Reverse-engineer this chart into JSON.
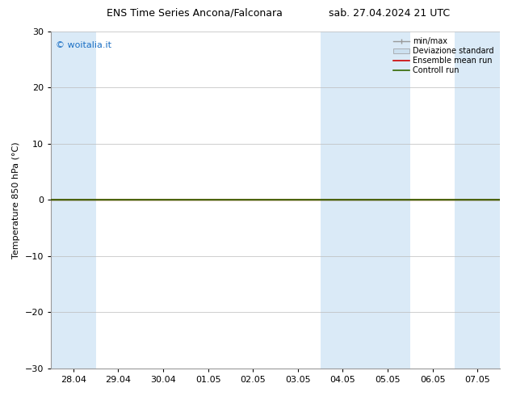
{
  "title_left": "ENS Time Series Ancona/Falconara",
  "title_right": "sab. 27.04.2024 21 UTC",
  "ylabel": "Temperature 850 hPa (°C)",
  "watermark": "© woitalia.it",
  "watermark_color": "#1a6fc4",
  "ylim": [
    -30,
    30
  ],
  "yticks": [
    -30,
    -20,
    -10,
    0,
    10,
    20,
    30
  ],
  "x_ticks": [
    "28.04",
    "29.04",
    "30.04",
    "01.05",
    "02.05",
    "03.05",
    "04.05",
    "05.05",
    "06.05",
    "07.05"
  ],
  "shade_color": "#daeaf7",
  "grid_color": "#bbbbbb",
  "zero_line_color": "#336600",
  "ensemble_mean_color": "#cc0000",
  "controll_run_color": "#336600",
  "background_color": "#ffffff",
  "legend_labels": [
    "min/max",
    "Deviazione standard",
    "Ensemble mean run",
    "Controll run"
  ],
  "legend_line_color": "#999999",
  "legend_fill_color": "#cce0f0",
  "legend_red": "#cc0000",
  "legend_green": "#336600",
  "title_fontsize": 9,
  "axis_fontsize": 8,
  "tick_fontsize": 8,
  "legend_fontsize": 7
}
